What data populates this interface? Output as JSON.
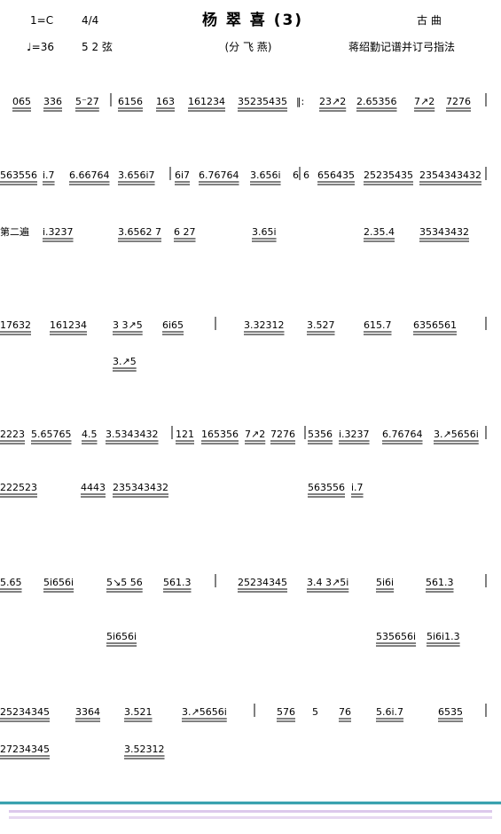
{
  "header": {
    "key": "1=C",
    "meter": "4/4",
    "title": "杨 翠 喜 (3)",
    "genre": "古 曲",
    "tempo": "♩=36",
    "tuning": "5 2 弦",
    "subtitle": "(分 飞 燕)",
    "credit": "蒋绍勤记谱并订弓指法"
  },
  "rows": [
    [
      "065",
      "336",
      "5⁻27",
      "6156",
      "163",
      "161234",
      "35235435",
      "‖:",
      "23↗2",
      "2.65356",
      "7↗2",
      "7276"
    ],
    [
      "563556",
      "i.7",
      "6.66764",
      "3.656i7",
      "6i7",
      "6.76764",
      "3.656i",
      "6",
      "6",
      "656435",
      "25235435",
      "2354343432"
    ],
    [
      "第二遍",
      "i.3237",
      "3.6562 7",
      "6 27",
      "3.65i",
      "2.35.4",
      "35343432"
    ],
    [
      "17632",
      "161234",
      "3 3↗5",
      "6i65",
      "3.32312",
      "3.527",
      "615.7",
      "6356561"
    ],
    [
      "3.↗5"
    ],
    [
      "2223",
      "5.65765",
      "4.5",
      "3.5343432",
      "121",
      "165356",
      "7↗2",
      "7276",
      "5356",
      "i.3237",
      "6.76764",
      "3.↗5656i"
    ],
    [
      "222523",
      "4443",
      "235343432",
      "563556",
      "i.7"
    ],
    [
      "5.65",
      "5i656i",
      "5↘5 56",
      "561.3",
      "25234345",
      "3.4 3↗5i",
      "5i6i",
      "561.3"
    ],
    [
      "5i656i",
      "535656i",
      "5i6i1.3"
    ],
    [
      "25234345",
      "3364",
      "3.521",
      "3.↗5656i",
      "576",
      "5",
      "76",
      "5.6i.7",
      "6535"
    ],
    [
      "27234345",
      "3.52312"
    ]
  ]
}
